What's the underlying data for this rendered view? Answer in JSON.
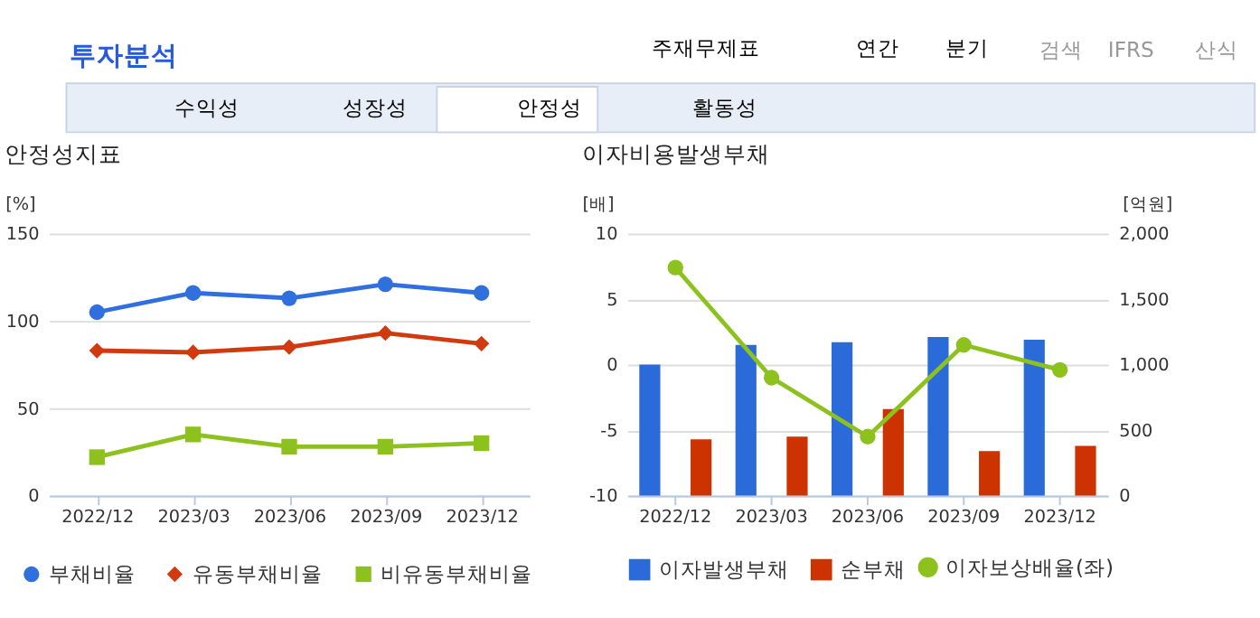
{
  "chart_data": [
    {
      "type": "line",
      "title": "안정성지표",
      "ylabel": "[%]",
      "categories": [
        "2022/12",
        "2023/03",
        "2023/06",
        "2023/09",
        "2023/12"
      ],
      "series": [
        {
          "name": "부채비율",
          "color": "#2f6fde",
          "marker": "circle",
          "values": [
            105,
            116,
            113,
            121,
            116
          ]
        },
        {
          "name": "유동부채비율",
          "color": "#d13a0f",
          "marker": "diamond",
          "values": [
            83,
            82,
            85,
            93,
            87
          ]
        },
        {
          "name": "비유동부채비율",
          "color": "#8cc11e",
          "marker": "square",
          "values": [
            22,
            35,
            28,
            28,
            30
          ]
        }
      ],
      "ylim": [
        0,
        150
      ],
      "yticks": [
        0,
        50,
        100,
        150
      ],
      "grid": "y",
      "legend": "bottom",
      "annotations": [
        "투자분석",
        "주재무제표",
        "연간",
        "분기",
        "검색",
        "IFRS",
        "산식",
        "수익성",
        "성장성",
        "안정성",
        "활동성"
      ]
    },
    {
      "type": "bar",
      "title": "이자비용발생부채",
      "ylabel": "[배]",
      "y2label": "[억원]",
      "categories": [
        "2022/12",
        "2023/03",
        "2023/06",
        "2023/09",
        "2023/12"
      ],
      "series": [
        {
          "name": "이자발생부채",
          "color": "#2a6ad9",
          "axis": "y2",
          "values": [
            1000,
            1150,
            1170,
            1210,
            1190
          ]
        },
        {
          "name": "순부채",
          "color": "#cc3300",
          "axis": "y2",
          "values": [
            430,
            450,
            660,
            340,
            380
          ]
        },
        {
          "name": "이자보상배율(좌)",
          "type": "line",
          "color": "#8cc11e",
          "marker": "circle",
          "values": [
            7.4,
            -1,
            -5.5,
            1.5,
            -0.4
          ]
        }
      ],
      "ylim": [
        -10,
        10
      ],
      "yticks": [
        -10,
        -5,
        0,
        5,
        10
      ],
      "y2lim": [
        0,
        2000
      ],
      "y2ticks": [
        0,
        500,
        {
          "value": 1000,
          "label": "1,000"
        },
        {
          "value": 1500,
          "label": "1,500"
        },
        {
          "value": 2000,
          "label": "2,000"
        }
      ],
      "grid": "y",
      "legend": "bottom"
    }
  ]
}
